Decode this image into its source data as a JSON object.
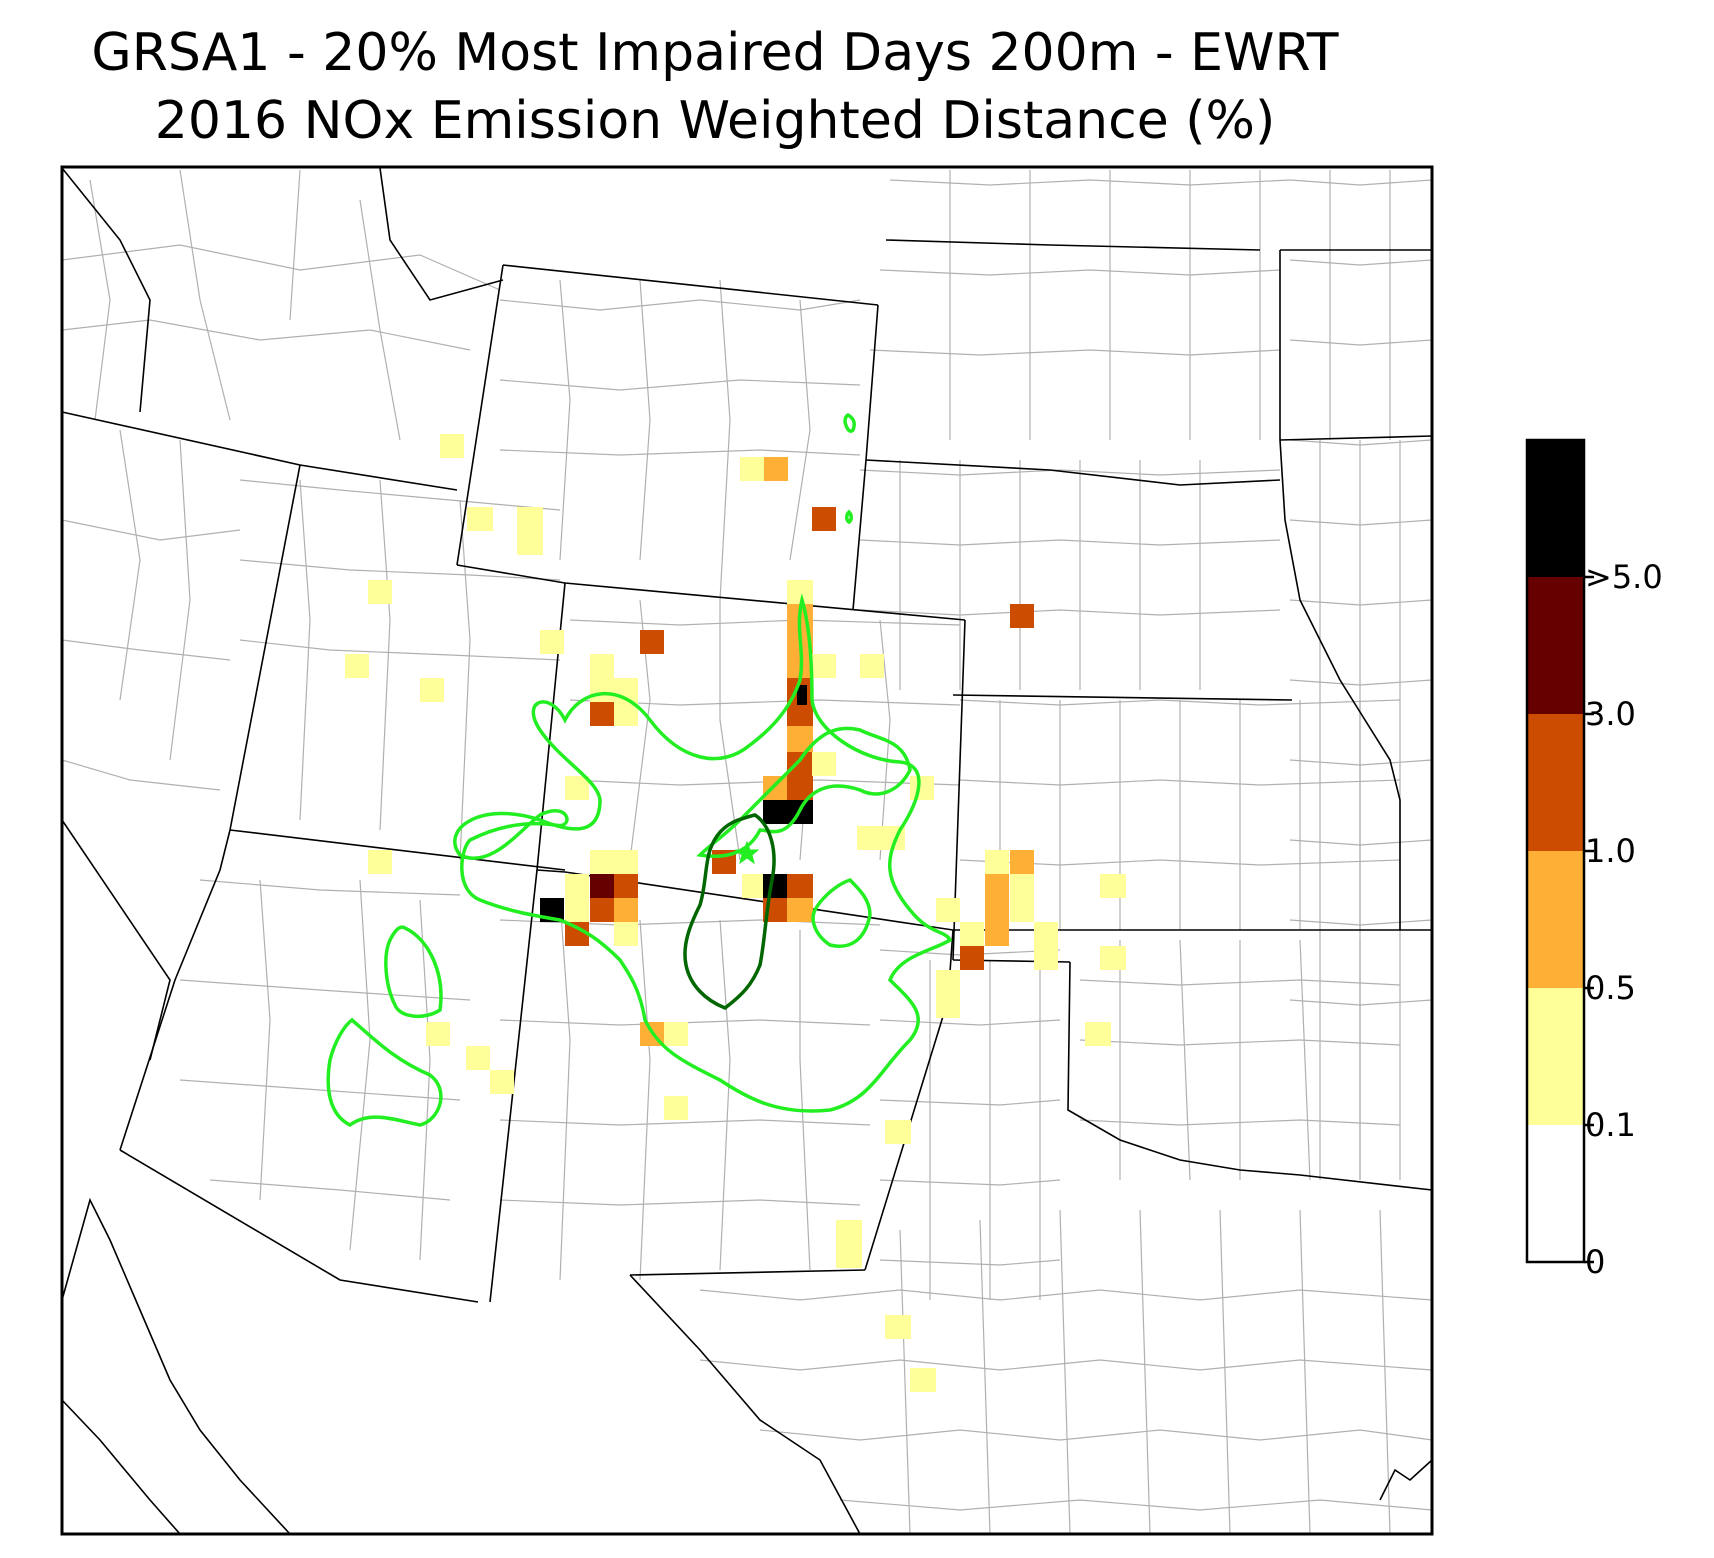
{
  "title": {
    "line1": "GRSA1 - 20% Most Impaired Days 200m - EWRT",
    "line2": "2016 NOx Emission Weighted Distance (%)"
  },
  "legend": {
    "ticks": [
      {
        "label": "0",
        "value": 0
      },
      {
        "label": "0.1",
        "value": 0.1
      },
      {
        "label": "0.5",
        "value": 0.5
      },
      {
        "label": "1.0",
        "value": 1.0
      },
      {
        "label": "3.0",
        "value": 3.0
      },
      {
        "label": ">5.0",
        "value": 5.0
      }
    ],
    "bins": [
      {
        "range": "0-0.1",
        "color": "#ffffff"
      },
      {
        "range": "0.1-0.5",
        "color": "#ffff99"
      },
      {
        "range": "0.5-1.0",
        "color": "#fdb035"
      },
      {
        "range": "1.0-3.0",
        "color": "#cc4c02"
      },
      {
        "range": "3.0-5.0",
        "color": "#660000"
      },
      {
        "range": ">5.0",
        "color": "#000000"
      }
    ]
  },
  "colors": {
    "contour_outer": "#22ee22",
    "contour_inner": "#006600",
    "site_marker": "#22ee22",
    "county_lines": "#aaaaaa",
    "state_lines": "#000000"
  },
  "site": {
    "name": "GRSA1",
    "marker": "star-icon"
  }
}
